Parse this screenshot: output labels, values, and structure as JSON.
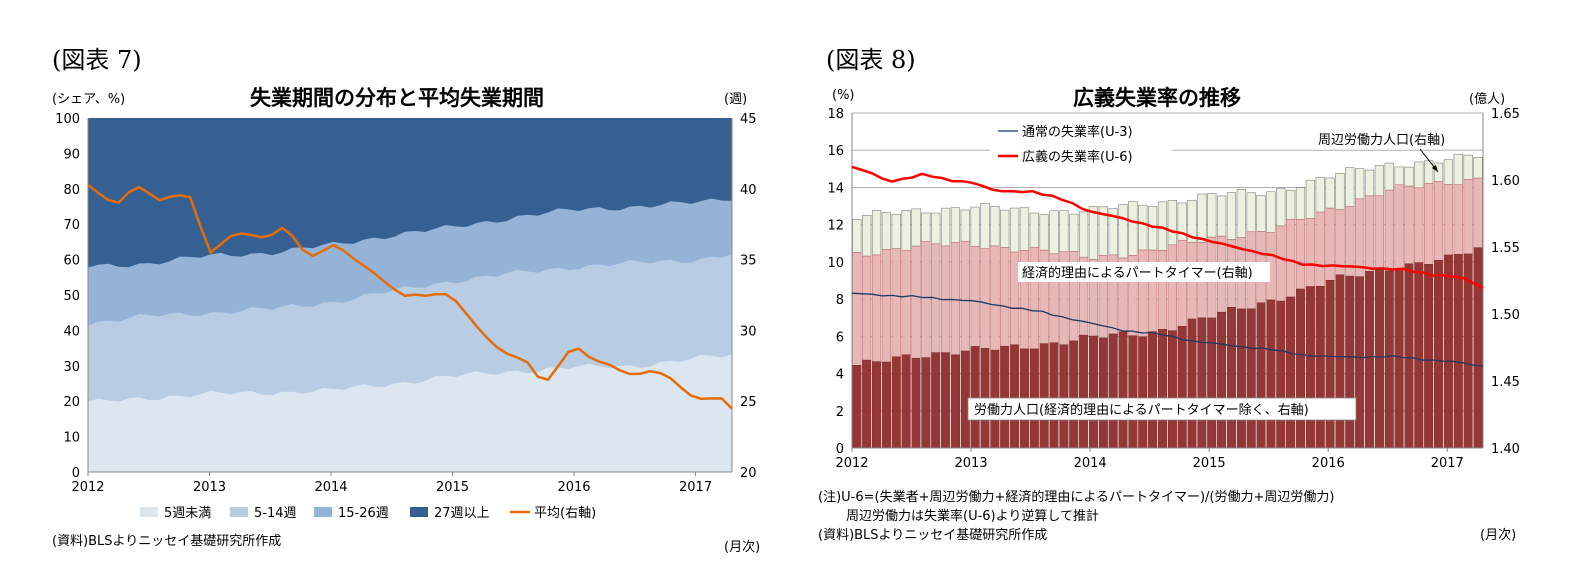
{
  "left": {
    "fig_label": "(図表 7)",
    "title": "失業期間の分布と平均失業期間",
    "left_unit": "(シェア、%)",
    "right_unit": "(週)",
    "x_unit": "(月次)",
    "source": "(資料)BLSよりニッセイ基礎研究所作成",
    "legend": [
      "5週未満",
      "5-14週",
      "15-26週",
      "27週以上",
      "平均(右軸)"
    ]
  },
  "right": {
    "fig_label": "(図表 8)",
    "title": "広義失業率の推移",
    "left_unit": "(%)",
    "right_unit": "(億人)",
    "x_unit": "(月次)",
    "note1": "(注)U-6=(失業者+周辺労働力+経済的理由によるパートタイマー)/(労働力+周辺労働力)",
    "note2": "周辺労働力は失業率(U-6)より逆算して推計",
    "source": "(資料)BLSよりニッセイ基礎研究所作成",
    "legend_u3": "通常の失業率(U-3)",
    "legend_u6": "広義の失業率(U-6)",
    "label_marginal": "周辺労働力人口(右軸)",
    "label_parttime": "経済的理由によるパートタイマー(右軸)",
    "label_labor": "労働力人口(経済的理由によるパートタイマー除く、右軸)"
  },
  "chart_data": [
    {
      "type": "area",
      "title": "失業期間の分布と平均失業期間",
      "x": [
        "2012",
        "2013",
        "2014",
        "2015",
        "2016",
        "2017"
      ],
      "x_range": [
        2012.0,
        2017.3
      ],
      "ylim": [
        0,
        100
      ],
      "y_ticks": [
        0,
        10,
        20,
        30,
        40,
        50,
        60,
        70,
        80,
        90,
        100
      ],
      "y2lim": [
        20,
        45
      ],
      "y2_ticks": [
        20,
        25,
        30,
        35,
        40,
        45
      ],
      "legend_position": "bottom",
      "series": [
        {
          "name": "5週未満",
          "color": "#dce6f1",
          "anchors": [
            [
              2012.0,
              19.5
            ],
            [
              2012.5,
              21
            ],
            [
              2013.0,
              22
            ],
            [
              2013.5,
              22.5
            ],
            [
              2014.0,
              23
            ],
            [
              2014.5,
              25
            ],
            [
              2015.0,
              27
            ],
            [
              2015.5,
              28.5
            ],
            [
              2016.0,
              29.5
            ],
            [
              2016.5,
              30
            ],
            [
              2017.0,
              32
            ],
            [
              2017.3,
              33
            ]
          ]
        },
        {
          "name": "5-14週",
          "color": "#b8cce4",
          "anchors": [
            [
              2012.0,
              42
            ],
            [
              2012.5,
              44
            ],
            [
              2013.0,
              45
            ],
            [
              2013.5,
              46
            ],
            [
              2014.0,
              48
            ],
            [
              2014.5,
              51
            ],
            [
              2015.0,
              54
            ],
            [
              2015.5,
              56
            ],
            [
              2016.0,
              58
            ],
            [
              2016.5,
              59
            ],
            [
              2017.0,
              60
            ],
            [
              2017.3,
              61.5
            ]
          ]
        },
        {
          "name": "15-26週",
          "color": "#95b3d7",
          "anchors": [
            [
              2012.0,
              58
            ],
            [
              2012.5,
              59
            ],
            [
              2013.0,
              61
            ],
            [
              2013.5,
              62
            ],
            [
              2014.0,
              64
            ],
            [
              2014.5,
              67
            ],
            [
              2015.0,
              69
            ],
            [
              2015.5,
              72
            ],
            [
              2016.0,
              74
            ],
            [
              2016.5,
              75
            ],
            [
              2017.0,
              76
            ],
            [
              2017.3,
              77.5
            ]
          ]
        },
        {
          "name": "27週以上",
          "color": "#376092",
          "anchors": [
            [
              2012.0,
              100
            ],
            [
              2017.3,
              100
            ]
          ]
        },
        {
          "name": "平均(右軸)",
          "color": "#e46c0a",
          "axis": "right",
          "anchors": [
            [
              2012.0,
              40.2
            ],
            [
              2012.25,
              39.0
            ],
            [
              2012.45,
              40.2
            ],
            [
              2012.6,
              39.3
            ],
            [
              2012.85,
              39.4
            ],
            [
              2013.0,
              35.5
            ],
            [
              2013.2,
              36.8
            ],
            [
              2013.4,
              36.6
            ],
            [
              2013.6,
              37.2
            ],
            [
              2013.8,
              35.3
            ],
            [
              2014.0,
              36.0
            ],
            [
              2014.3,
              34.5
            ],
            [
              2014.6,
              32.3
            ],
            [
              2014.9,
              32.8
            ],
            [
              2015.2,
              30.5
            ],
            [
              2015.4,
              28.3
            ],
            [
              2015.6,
              28.0
            ],
            [
              2015.75,
              26.2
            ],
            [
              2016.0,
              28.8
            ],
            [
              2016.2,
              28.0
            ],
            [
              2016.4,
              26.8
            ],
            [
              2016.6,
              27.3
            ],
            [
              2016.8,
              26.5
            ],
            [
              2017.0,
              25.2
            ],
            [
              2017.2,
              25.3
            ],
            [
              2017.3,
              24.3
            ]
          ]
        }
      ]
    },
    {
      "type": "bar",
      "title": "広義失業率の推移",
      "x": [
        "2012",
        "2013",
        "2014",
        "2015",
        "2016",
        "2017"
      ],
      "x_range": [
        2012.0,
        2017.3
      ],
      "ylim": [
        0,
        18
      ],
      "y_ticks": [
        0,
        2,
        4,
        6,
        8,
        10,
        12,
        14,
        16,
        18
      ],
      "y2lim": [
        1.4,
        1.65
      ],
      "y2_ticks": [
        "1.40",
        "1.45",
        "1.50",
        "1.55",
        "1.60",
        "1.65"
      ],
      "stacked_bars": [
        {
          "name": "労働力人口(経済的理由によるパートタイマー除く、右軸)",
          "color": "#953735",
          "anchors": [
            [
              2012.0,
              4.3
            ],
            [
              2012.5,
              5.0
            ],
            [
              2013.0,
              5.2
            ],
            [
              2013.5,
              5.5
            ],
            [
              2014.0,
              5.9
            ],
            [
              2014.5,
              6.2
            ],
            [
              2015.0,
              7.0
            ],
            [
              2015.5,
              7.9
            ],
            [
              2016.0,
              8.9
            ],
            [
              2016.5,
              9.7
            ],
            [
              2017.0,
              10.1
            ],
            [
              2017.3,
              10.8
            ]
          ]
        },
        {
          "name": "経済的理由によるパートタイマー(右軸)",
          "color": "#e6b9b8",
          "anchors": [
            [
              2012.0,
              10.4
            ],
            [
              2012.5,
              10.8
            ],
            [
              2013.0,
              11.0
            ],
            [
              2013.5,
              10.6
            ],
            [
              2014.0,
              10.3
            ],
            [
              2014.5,
              10.5
            ],
            [
              2015.0,
              11.3
            ],
            [
              2015.5,
              11.6
            ],
            [
              2016.0,
              12.8
            ],
            [
              2016.5,
              13.8
            ],
            [
              2017.0,
              14.3
            ],
            [
              2017.3,
              14.5
            ]
          ]
        },
        {
          "name": "周辺労働力人口(右軸)",
          "color": "#ebf1de",
          "anchors": [
            [
              2012.0,
              12.4
            ],
            [
              2012.5,
              12.7
            ],
            [
              2013.0,
              13.0
            ],
            [
              2013.5,
              12.7
            ],
            [
              2014.0,
              12.8
            ],
            [
              2014.5,
              13.1
            ],
            [
              2015.0,
              13.6
            ],
            [
              2015.5,
              13.7
            ],
            [
              2016.0,
              14.6
            ],
            [
              2016.5,
              15.2
            ],
            [
              2017.0,
              15.5
            ],
            [
              2017.3,
              15.7
            ]
          ]
        }
      ],
      "lines": [
        {
          "name": "通常の失業率(U-3)",
          "color": "#1f3864",
          "anchors": [
            [
              2012.0,
              8.3
            ],
            [
              2012.3,
              8.2
            ],
            [
              2012.6,
              8.1
            ],
            [
              2013.0,
              7.9
            ],
            [
              2013.3,
              7.6
            ],
            [
              2013.6,
              7.3
            ],
            [
              2014.0,
              6.7
            ],
            [
              2014.3,
              6.3
            ],
            [
              2014.6,
              6.1
            ],
            [
              2014.9,
              5.7
            ],
            [
              2015.2,
              5.5
            ],
            [
              2015.5,
              5.3
            ],
            [
              2015.8,
              5.0
            ],
            [
              2016.0,
              4.9
            ],
            [
              2016.3,
              4.9
            ],
            [
              2016.6,
              4.9
            ],
            [
              2016.9,
              4.7
            ],
            [
              2017.1,
              4.6
            ],
            [
              2017.3,
              4.4
            ]
          ]
        },
        {
          "name": "広義の失業率(U-6)",
          "color": "#ff0000",
          "anchors": [
            [
              2012.0,
              15.1
            ],
            [
              2012.15,
              14.8
            ],
            [
              2012.3,
              14.3
            ],
            [
              2012.6,
              14.7
            ],
            [
              2012.8,
              14.4
            ],
            [
              2013.0,
              14.3
            ],
            [
              2013.2,
              13.8
            ],
            [
              2013.5,
              13.8
            ],
            [
              2013.8,
              13.3
            ],
            [
              2014.0,
              12.7
            ],
            [
              2014.3,
              12.3
            ],
            [
              2014.6,
              11.8
            ],
            [
              2014.9,
              11.3
            ],
            [
              2015.2,
              10.8
            ],
            [
              2015.5,
              10.4
            ],
            [
              2015.75,
              9.9
            ],
            [
              2016.0,
              9.8
            ],
            [
              2016.3,
              9.7
            ],
            [
              2016.6,
              9.6
            ],
            [
              2016.9,
              9.3
            ],
            [
              2017.1,
              9.2
            ],
            [
              2017.3,
              8.6
            ]
          ]
        }
      ]
    }
  ]
}
